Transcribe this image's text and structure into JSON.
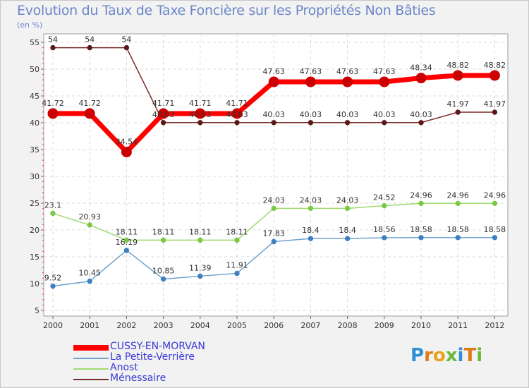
{
  "page": {
    "title": "Evolution du Taux de Taxe Foncière sur les Propriétés Non Bâties",
    "unit": "(en %)",
    "logo": "ProxiTi"
  },
  "chart_data": {
    "type": "line",
    "title": "Evolution du Taux de Taxe Foncière sur les Propriétés Non Bâties",
    "ylabel": "(en %)",
    "xlabel": "",
    "categories": [
      "2000",
      "2001",
      "2002",
      "2003",
      "2004",
      "2005",
      "2006",
      "2007",
      "2008",
      "2009",
      "2010",
      "2011",
      "2012"
    ],
    "ylim": [
      5,
      55
    ],
    "yticks": [
      5,
      10,
      15,
      20,
      25,
      30,
      35,
      40,
      45,
      50,
      55
    ],
    "grid": true,
    "legend_position": "bottom-left",
    "series": [
      {
        "name": "CUSSY-EN-MORVAN",
        "color": "#ff0000",
        "marker": "#cc0000",
        "width": 7,
        "values": [
          41.72,
          41.72,
          34.54,
          41.71,
          41.71,
          41.71,
          47.63,
          47.63,
          47.63,
          47.63,
          48.34,
          48.82,
          48.82
        ],
        "labels": [
          "41.72",
          "41.72",
          "34.54",
          "41.71",
          "41.71",
          "41.71",
          "47.63",
          "47.63",
          "47.63",
          "47.63",
          "48.34",
          "48.82",
          "48.82"
        ]
      },
      {
        "name": "La Petite-Verrière",
        "color": "#6fa3cf",
        "marker": "#3f7fbf",
        "width": 1.5,
        "values": [
          9.52,
          10.45,
          16.19,
          10.85,
          11.39,
          11.91,
          17.83,
          18.4,
          18.4,
          18.56,
          18.58,
          18.58,
          18.58
        ],
        "labels": [
          "9.52",
          "10.45",
          "16.19",
          "10.85",
          "11.39",
          "11.91",
          "17.83",
          "18.4",
          "18.4",
          "18.56",
          "18.58",
          "18.58",
          "18.58"
        ]
      },
      {
        "name": "Anost",
        "color": "#9fd96f",
        "marker": "#7ac943",
        "width": 1.5,
        "values": [
          23.1,
          20.93,
          18.11,
          18.11,
          18.11,
          18.11,
          24.03,
          24.03,
          24.03,
          24.52,
          24.96,
          24.96,
          24.96
        ],
        "labels": [
          "23.1",
          "20.93",
          "18.11",
          "18.11",
          "18.11",
          "18.11",
          "24.03",
          "24.03",
          "24.03",
          "24.52",
          "24.96",
          "24.96",
          "24.96"
        ]
      },
      {
        "name": "Ménessaire",
        "color": "#7a2a2a",
        "marker": "#5a1a1a",
        "width": 1.5,
        "values": [
          54,
          54,
          54,
          40.03,
          40.03,
          40.03,
          40.03,
          40.03,
          40.03,
          40.03,
          40.03,
          41.97,
          41.97
        ],
        "labels": [
          "54",
          "54",
          "54",
          "40.03",
          "40.03",
          "40.03",
          "40.03",
          "40.03",
          "40.03",
          "40.03",
          "40.03",
          "41.97",
          "41.97"
        ]
      }
    ]
  }
}
